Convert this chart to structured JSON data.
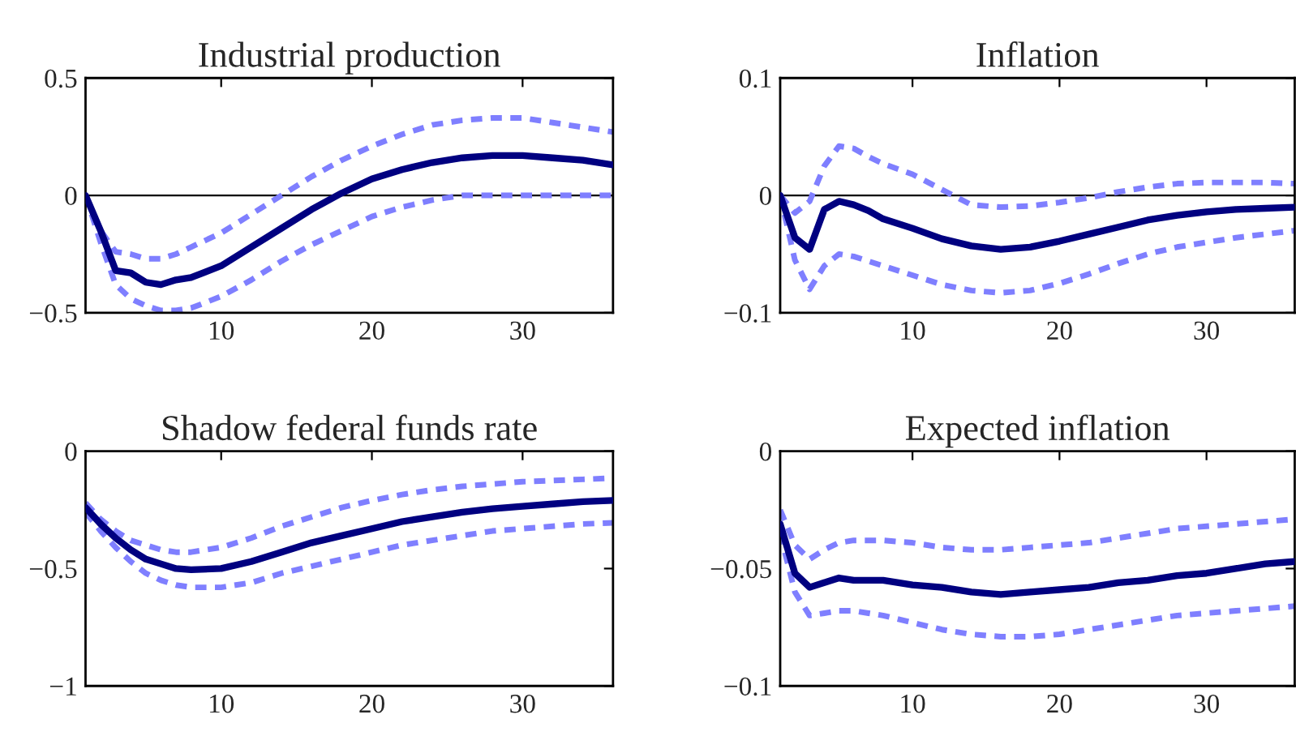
{
  "chart_data": [
    {
      "type": "line",
      "title": "Industrial production",
      "x": [
        1,
        2,
        3,
        4,
        5,
        6,
        7,
        8,
        10,
        12,
        14,
        16,
        18,
        20,
        22,
        24,
        26,
        28,
        30,
        32,
        34,
        36
      ],
      "xlim": [
        1,
        36
      ],
      "xticks": [
        10,
        20,
        30
      ],
      "ylim": [
        -0.5,
        0.5
      ],
      "yticks": [
        {
          "value": -0.5,
          "label": "−0.5"
        },
        0,
        0.5
      ],
      "grid": false,
      "ref_lines": [
        {
          "axis": "y",
          "value": 0,
          "color": "#000000"
        }
      ],
      "series": [
        {
          "color": "#000080",
          "line_style": "solid",
          "values": [
            0,
            -0.15,
            -0.32,
            -0.33,
            -0.37,
            -0.38,
            -0.36,
            -0.35,
            -0.3,
            -0.22,
            -0.14,
            -0.06,
            0.01,
            0.07,
            0.11,
            0.14,
            0.16,
            0.17,
            0.17,
            0.16,
            0.15,
            0.13
          ]
        },
        {
          "color": "#7f7fff",
          "line_style": "dashed",
          "values": [
            0,
            -0.15,
            -0.24,
            -0.25,
            -0.27,
            -0.27,
            -0.25,
            -0.22,
            -0.16,
            -0.08,
            0.0,
            0.08,
            0.15,
            0.21,
            0.26,
            0.3,
            0.32,
            0.33,
            0.33,
            0.31,
            0.29,
            0.27
          ]
        },
        {
          "color": "#7f7fff",
          "line_style": "dashed",
          "values": [
            0,
            -0.2,
            -0.38,
            -0.44,
            -0.47,
            -0.49,
            -0.49,
            -0.48,
            -0.43,
            -0.36,
            -0.28,
            -0.21,
            -0.15,
            -0.09,
            -0.05,
            -0.02,
            0.0,
            0.0,
            0.0,
            0.0,
            0.0,
            0.0
          ]
        }
      ]
    },
    {
      "type": "line",
      "title": "Inflation",
      "x": [
        1,
        2,
        3,
        4,
        5,
        6,
        7,
        8,
        10,
        12,
        14,
        16,
        18,
        20,
        22,
        24,
        26,
        28,
        30,
        32,
        34,
        36
      ],
      "xlim": [
        1,
        36
      ],
      "xticks": [
        10,
        20,
        30
      ],
      "ylim": [
        -0.1,
        0.1
      ],
      "yticks": [
        {
          "value": -0.1,
          "label": "−0.1"
        },
        0,
        0.1
      ],
      "grid": false,
      "ref_lines": [
        {
          "axis": "y",
          "value": 0,
          "color": "#000000"
        }
      ],
      "series": [
        {
          "color": "#000080",
          "line_style": "solid",
          "values": [
            0,
            -0.036,
            -0.046,
            -0.012,
            -0.005,
            -0.008,
            -0.013,
            -0.02,
            -0.028,
            -0.037,
            -0.043,
            -0.046,
            -0.044,
            -0.039,
            -0.033,
            -0.027,
            -0.021,
            -0.017,
            -0.014,
            -0.012,
            -0.011,
            -0.01
          ]
        },
        {
          "color": "#7f7fff",
          "line_style": "dashed",
          "values": [
            0,
            -0.015,
            -0.005,
            0.025,
            0.042,
            0.04,
            0.033,
            0.027,
            0.018,
            0.005,
            -0.008,
            -0.01,
            -0.009,
            -0.006,
            -0.002,
            0.003,
            0.007,
            0.01,
            0.011,
            0.011,
            0.011,
            0.01
          ]
        },
        {
          "color": "#7f7fff",
          "line_style": "dashed",
          "values": [
            0,
            -0.055,
            -0.08,
            -0.06,
            -0.05,
            -0.052,
            -0.056,
            -0.06,
            -0.068,
            -0.076,
            -0.081,
            -0.083,
            -0.081,
            -0.075,
            -0.067,
            -0.058,
            -0.05,
            -0.044,
            -0.04,
            -0.036,
            -0.033,
            -0.03
          ]
        }
      ]
    },
    {
      "type": "line",
      "title": "Shadow federal funds rate",
      "x": [
        1,
        2,
        3,
        4,
        5,
        6,
        7,
        8,
        10,
        12,
        14,
        16,
        18,
        20,
        22,
        24,
        26,
        28,
        30,
        32,
        34,
        36
      ],
      "xlim": [
        1,
        36
      ],
      "xticks": [
        10,
        20,
        30
      ],
      "ylim": [
        -1,
        0
      ],
      "yticks": [
        {
          "value": -1,
          "label": "−1"
        },
        {
          "value": -0.5,
          "label": "−0.5"
        },
        0
      ],
      "grid": false,
      "series": [
        {
          "color": "#000080",
          "line_style": "solid",
          "values": [
            -0.24,
            -0.31,
            -0.37,
            -0.42,
            -0.46,
            -0.48,
            -0.5,
            -0.505,
            -0.5,
            -0.47,
            -0.43,
            -0.39,
            -0.36,
            -0.33,
            -0.3,
            -0.28,
            -0.26,
            -0.245,
            -0.235,
            -0.225,
            -0.215,
            -0.21
          ]
        },
        {
          "color": "#7f7fff",
          "line_style": "dashed",
          "values": [
            -0.22,
            -0.29,
            -0.34,
            -0.38,
            -0.4,
            -0.42,
            -0.43,
            -0.43,
            -0.41,
            -0.37,
            -0.32,
            -0.28,
            -0.24,
            -0.21,
            -0.185,
            -0.165,
            -0.15,
            -0.14,
            -0.13,
            -0.125,
            -0.12,
            -0.115
          ]
        },
        {
          "color": "#7f7fff",
          "line_style": "dashed",
          "values": [
            -0.26,
            -0.34,
            -0.41,
            -0.47,
            -0.52,
            -0.55,
            -0.57,
            -0.58,
            -0.58,
            -0.56,
            -0.52,
            -0.49,
            -0.46,
            -0.43,
            -0.4,
            -0.38,
            -0.36,
            -0.34,
            -0.33,
            -0.32,
            -0.31,
            -0.305
          ]
        }
      ]
    },
    {
      "type": "line",
      "title": "Expected inflation",
      "x": [
        1,
        2,
        3,
        4,
        5,
        6,
        7,
        8,
        10,
        12,
        14,
        16,
        18,
        20,
        22,
        24,
        26,
        28,
        30,
        32,
        34,
        36
      ],
      "xlim": [
        1,
        36
      ],
      "xticks": [
        10,
        20,
        30
      ],
      "ylim": [
        -0.1,
        0
      ],
      "yticks": [
        {
          "value": -0.1,
          "label": "−0.1"
        },
        {
          "value": -0.05,
          "label": "−0.05"
        },
        0
      ],
      "grid": false,
      "series": [
        {
          "color": "#000080",
          "line_style": "solid",
          "values": [
            -0.031,
            -0.052,
            -0.058,
            -0.056,
            -0.054,
            -0.055,
            -0.055,
            -0.055,
            -0.057,
            -0.058,
            -0.06,
            -0.061,
            -0.06,
            -0.059,
            -0.058,
            -0.056,
            -0.055,
            -0.053,
            -0.052,
            -0.05,
            -0.048,
            -0.047
          ]
        },
        {
          "color": "#7f7fff",
          "line_style": "dashed",
          "values": [
            -0.025,
            -0.04,
            -0.046,
            -0.042,
            -0.039,
            -0.038,
            -0.038,
            -0.038,
            -0.039,
            -0.041,
            -0.042,
            -0.042,
            -0.041,
            -0.04,
            -0.039,
            -0.037,
            -0.035,
            -0.033,
            -0.032,
            -0.031,
            -0.03,
            -0.029
          ]
        },
        {
          "color": "#7f7fff",
          "line_style": "dashed",
          "values": [
            -0.035,
            -0.06,
            -0.07,
            -0.069,
            -0.068,
            -0.068,
            -0.069,
            -0.07,
            -0.073,
            -0.076,
            -0.078,
            -0.079,
            -0.079,
            -0.078,
            -0.076,
            -0.074,
            -0.072,
            -0.07,
            -0.069,
            -0.068,
            -0.067,
            -0.066
          ]
        }
      ]
    }
  ]
}
